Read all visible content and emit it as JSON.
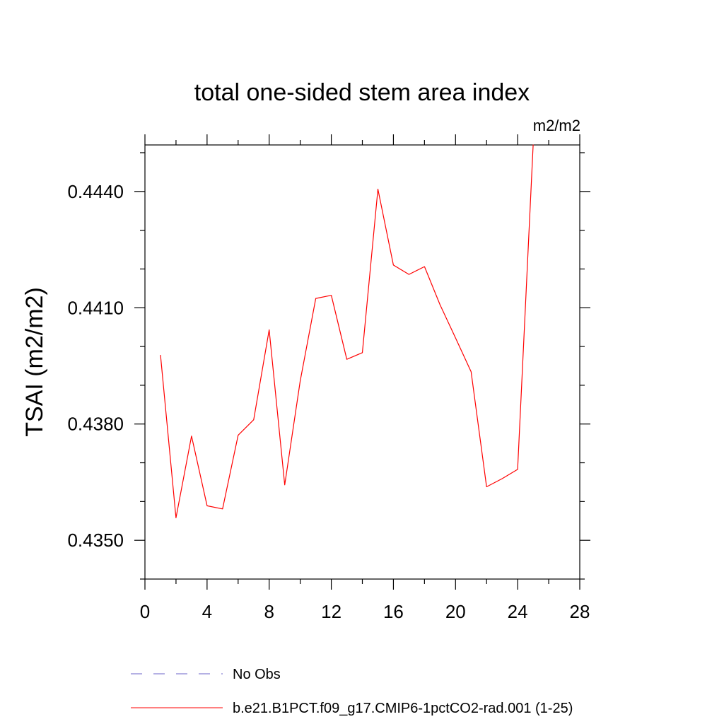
{
  "chart_data": {
    "type": "line",
    "title": "total one-sided stem area index",
    "units_label": "m2/m2",
    "ylabel": "TSAI  (m2/m2)",
    "xlabel": "",
    "xlim": [
      0,
      28
    ],
    "ylim": [
      0.434,
      0.4452
    ],
    "x_ticks": [
      0,
      4,
      8,
      12,
      16,
      20,
      24,
      28
    ],
    "x_minor_ticks": [
      2,
      6,
      10,
      14,
      18,
      22,
      26
    ],
    "y_ticks": [
      0.435,
      0.438,
      0.441,
      0.444
    ],
    "y_tick_labels": [
      "0.4350",
      "0.4380",
      "0.4410",
      "0.4440"
    ],
    "y_minor_ticks": [
      0.434,
      0.436,
      0.437,
      0.439,
      0.44,
      0.442,
      0.443,
      0.445
    ],
    "grid": false,
    "series": [
      {
        "name": "b.e21.B1PCT.f09_g17.CMIP6-1pctCO2-rad.001 (1-25)",
        "color": "#ff0000",
        "dash": "solid",
        "x": [
          1,
          2,
          3,
          4,
          5,
          6,
          7,
          8,
          9,
          10,
          11,
          12,
          13,
          14,
          15,
          16,
          17,
          18,
          19,
          20,
          21,
          22,
          23,
          24,
          25
        ],
        "y": [
          0.43978,
          0.43558,
          0.43769,
          0.43589,
          0.43581,
          0.43771,
          0.43811,
          0.44043,
          0.43643,
          0.43911,
          0.44124,
          0.44132,
          0.43967,
          0.43984,
          0.44406,
          0.4421,
          0.44186,
          0.44206,
          0.44108,
          0.44022,
          0.43935,
          0.43638,
          0.43659,
          0.43683,
          0.44521
        ]
      }
    ],
    "legend": {
      "placement": "bottom",
      "entries": [
        {
          "label": "No Obs",
          "color": "#6b63c8",
          "dash": "dashed"
        },
        {
          "label": "b.e21.B1PCT.f09_g17.CMIP6-1pctCO2-rad.001 (1-25)",
          "color": "#ff0000",
          "dash": "solid"
        }
      ]
    }
  }
}
